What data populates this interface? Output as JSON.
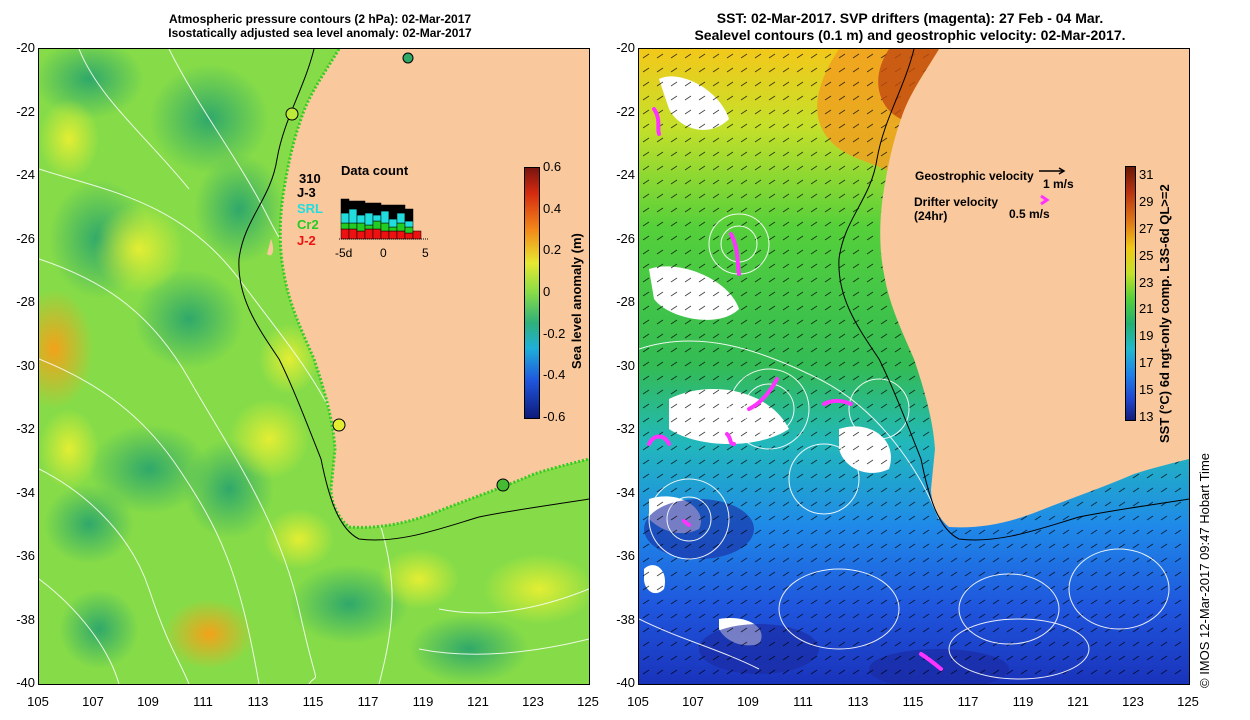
{
  "left_panel": {
    "title_line1": "Atmospheric pressure contours (2 hPa): 02-Mar-2017",
    "title_line2": "Isostatically adjusted sea level anomaly: 02-Mar-2017",
    "y_ticks": [
      "-20",
      "-22",
      "-24",
      "-26",
      "-28",
      "-30",
      "-32",
      "-34",
      "-36",
      "-38",
      "-40"
    ],
    "x_ticks": [
      "105",
      "107",
      "109",
      "111",
      "113",
      "115",
      "117",
      "119",
      "121",
      "123",
      "125"
    ],
    "colorbar_label": "Sea level anomaly (m)",
    "colorbar_ticks": [
      "0.6",
      "0.4",
      "0.2",
      "0",
      "-0.2",
      "-0.4",
      "-0.6"
    ],
    "data_count": {
      "title": "Data count",
      "total": "310",
      "missions": [
        {
          "name": "J-3",
          "color": "#000000"
        },
        {
          "name": "SRL",
          "color": "#22dddd"
        },
        {
          "name": "Cr2",
          "color": "#22cc22"
        },
        {
          "name": "J-2",
          "color": "#ee1111"
        }
      ],
      "x_ticks": [
        "-5d",
        "0",
        "5"
      ]
    }
  },
  "right_panel": {
    "title_line1": "SST: 02-Mar-2017. SVP drifters (magenta): 27 Feb - 04 Mar.",
    "title_line2": "Sealevel contours (0.1 m) and geostrophic velocity: 02-Mar-2017.",
    "y_ticks": [
      "-20",
      "-22",
      "-24",
      "-26",
      "-28",
      "-30",
      "-32",
      "-34",
      "-36",
      "-38",
      "-40"
    ],
    "x_ticks": [
      "105",
      "107",
      "109",
      "111",
      "113",
      "115",
      "117",
      "119",
      "121",
      "123",
      "125"
    ],
    "legend": {
      "geostrophic_label": "Geostrophic velocity",
      "geostrophic_scale": "1 m/s",
      "drifter_label": "Drifter velocity",
      "drifter_sub": "(24hr)",
      "drifter_scale": "0.5 m/s"
    },
    "colorbar_label": "SST (°C) 6d ngt-only comp. L3S-6d QL>=2",
    "colorbar_ticks": [
      "31",
      "29",
      "27",
      "25",
      "23",
      "21",
      "19",
      "17",
      "15",
      "13"
    ]
  },
  "credit": "© IMOS 12-Mar-2017 09:47 Hobart Time",
  "colors": {
    "land": "#f9c89d",
    "sla_green": "#8ee24a",
    "sst_green": "#44cc33",
    "sst_blue": "#2277ee",
    "drifter": "#ff33ff"
  }
}
